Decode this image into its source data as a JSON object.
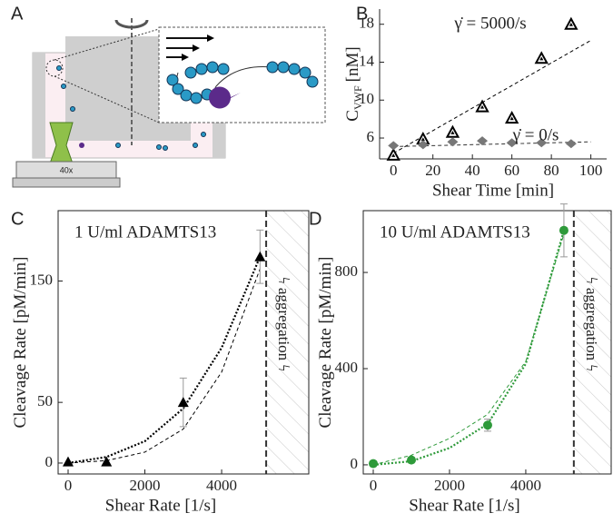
{
  "panel_labels": [
    "A",
    "B",
    "C",
    "D"
  ],
  "illustration": {
    "objective_label": "40x"
  },
  "chart_data": [
    {
      "type": "scatter",
      "xlabel": "Shear Time [min]",
      "ylabel": "C",
      "ylabel_sub": "VWF",
      "ylabel_unit": "[nM]",
      "xlim": [
        -7,
        108
      ],
      "xticks": [
        0,
        20,
        40,
        60,
        80,
        100
      ],
      "ylim": [
        3.8,
        19.6
      ],
      "yticks": [
        6,
        10,
        14,
        18
      ],
      "frame": false,
      "series": [
        {
          "name": "γ̇ = 5000/s",
          "color": "#000000",
          "marker": "triangle",
          "x": [
            0,
            15,
            30,
            45,
            60,
            75,
            90
          ],
          "values": [
            4.2,
            5.9,
            6.6,
            9.3,
            8.1,
            14.4,
            18.0
          ],
          "fit": {
            "x": [
              0,
              100
            ],
            "y": [
              4.4,
              16.3
            ]
          }
        },
        {
          "name": "γ̇ = 0/s",
          "color": "#777777",
          "marker": "diamond",
          "x": [
            0,
            15,
            30,
            45,
            60,
            75,
            90
          ],
          "values": [
            5.2,
            5.3,
            5.6,
            5.7,
            5.5,
            5.5,
            5.4
          ],
          "fit": {
            "x": [
              0,
              100
            ],
            "y": [
              5.1,
              5.6
            ]
          }
        }
      ]
    },
    {
      "type": "scatter",
      "xlabel": "Shear Rate [1/s]",
      "ylabel": "Cleavage Rate [pM/min]",
      "annotation": "1 U/ml ADAMTS13",
      "region_label": "ϟ aggregation ϟ",
      "threshold_x": 5160,
      "frame": true,
      "xlim": [
        -260,
        6270
      ],
      "xticks": [
        0,
        2000,
        4000
      ],
      "ylim": [
        -9,
        208
      ],
      "yticks": [
        0,
        50,
        150
      ],
      "series": [
        {
          "color": "#000000",
          "marker": "triangle",
          "x": [
            0,
            1000,
            3000,
            5000
          ],
          "values": [
            1,
            1,
            50,
            170
          ],
          "errors": [
            0,
            0,
            20,
            22
          ],
          "fits": [
            {
              "x": [
                0,
                1000,
                2000,
                3000,
                4000,
                5000
              ],
              "y": [
                0,
                5,
                18,
                45,
                95,
                170
              ],
              "style": "dotted"
            },
            {
              "x": [
                0,
                1000,
                2000,
                3000,
                4000,
                5000
              ],
              "y": [
                0,
                2,
                9,
                28,
                75,
                160
              ],
              "style": "dashed"
            }
          ]
        }
      ]
    },
    {
      "type": "scatter",
      "xlabel": "Shear Rate [1/s]",
      "ylabel": "Cleavage Rate [pM/min]",
      "annotation": "10 U/ml ADAMTS13",
      "region_label": "ϟ aggregation ϟ",
      "threshold_x": 5260,
      "frame": true,
      "annotation_color": "#2e9a3a",
      "xlim": [
        -262,
        6240
      ],
      "xticks": [
        0,
        2000,
        4000
      ],
      "ylim": [
        -38,
        1057
      ],
      "yticks": [
        0,
        400,
        800
      ],
      "series": [
        {
          "color": "#2e9a3a",
          "marker": "circle",
          "x": [
            0,
            1000,
            3000,
            5000
          ],
          "values": [
            5,
            20,
            165,
            975
          ],
          "errors": [
            0,
            0,
            25,
            110
          ],
          "fits": [
            {
              "x": [
                0,
                1000,
                2000,
                3000,
                4000,
                5000
              ],
              "y": [
                0,
                15,
                70,
                170,
                420,
                975
              ],
              "style": "dotted"
            },
            {
              "x": [
                0,
                1000,
                2000,
                3000,
                4000,
                5000
              ],
              "y": [
                0,
                40,
                110,
                210,
                430,
                960
              ],
              "style": "dashed"
            }
          ]
        }
      ]
    }
  ]
}
